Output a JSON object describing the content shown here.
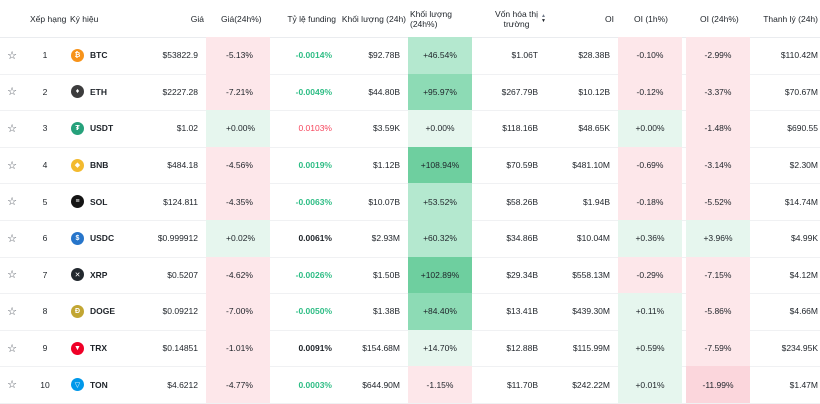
{
  "headers": {
    "rank": "Xếp hạng",
    "symbol": "Ký hiệu",
    "price": "Giá",
    "price_change": "Giá(24h%)",
    "funding": "Tỷ lệ funding",
    "volume": "Khối lượng (24h)",
    "volume_change": "Khối lượng (24h%)",
    "mcap_line1": "Vốn hóa thị",
    "mcap_line2": "trường",
    "oi": "OI",
    "oi_1h": "OI (1h%)",
    "oi_24h": "OI (24h%)",
    "liq": "Thanh lý (24h)"
  },
  "icons": {
    "favorite": "☆"
  },
  "rows": [
    {
      "rank": "1",
      "symbol": "BTC",
      "icon": "bitcoin-icon",
      "icon_glyph": "₿",
      "icon_color": "#f7931a",
      "price": "$53822.9",
      "price_change": "-5.13%",
      "funding": "-0.0014%",
      "funding_style": "fund-green",
      "volume": "$92.78B",
      "volume_change": "+46.54%",
      "vc_bg": "bg-g2",
      "pc_bg": "bg-r1",
      "mcap": "$1.06T",
      "oi": "$28.38B",
      "oi_1h": "-0.10%",
      "oi1_bg": "bg-r1",
      "oi_24h": "-2.99%",
      "oi24_bg": "bg-r1",
      "liq": "$110.42M"
    },
    {
      "rank": "2",
      "symbol": "ETH",
      "icon": "ethereum-icon",
      "icon_glyph": "♦",
      "icon_color": "#3c3c3d",
      "price": "$2227.28",
      "price_change": "-7.21%",
      "funding": "-0.0049%",
      "funding_style": "fund-green",
      "volume": "$44.80B",
      "volume_change": "+95.97%",
      "vc_bg": "bg-g3",
      "pc_bg": "bg-r1",
      "mcap": "$267.79B",
      "oi": "$10.12B",
      "oi_1h": "-0.12%",
      "oi1_bg": "bg-r1",
      "oi_24h": "-3.37%",
      "oi24_bg": "bg-r1",
      "liq": "$70.67M"
    },
    {
      "rank": "3",
      "symbol": "USDT",
      "icon": "tether-icon",
      "icon_glyph": "₮",
      "icon_color": "#26a17b",
      "price": "$1.02",
      "price_change": "+0.00%",
      "funding": "0.0103%",
      "funding_style": "fund-red",
      "volume": "$3.59K",
      "volume_change": "+0.00%",
      "vc_bg": "bg-g1",
      "pc_bg": "bg-g1",
      "mcap": "$118.16B",
      "oi": "$48.65K",
      "oi_1h": "+0.00%",
      "oi1_bg": "bg-g1",
      "oi_24h": "-1.48%",
      "oi24_bg": "bg-r1",
      "liq": "$690.55"
    },
    {
      "rank": "4",
      "symbol": "BNB",
      "icon": "bnb-icon",
      "icon_glyph": "◆",
      "icon_color": "#f3ba2f",
      "price": "$484.18",
      "price_change": "-4.56%",
      "funding": "0.0019%",
      "funding_style": "fund-green",
      "volume": "$1.12B",
      "volume_change": "+108.94%",
      "vc_bg": "bg-g4",
      "pc_bg": "bg-r1",
      "mcap": "$70.59B",
      "oi": "$481.10M",
      "oi_1h": "-0.69%",
      "oi1_bg": "bg-r1",
      "oi_24h": "-3.14%",
      "oi24_bg": "bg-r1",
      "liq": "$2.30M"
    },
    {
      "rank": "5",
      "symbol": "SOL",
      "icon": "solana-icon",
      "icon_glyph": "≡",
      "icon_color": "#141414",
      "price": "$124.811",
      "price_change": "-4.35%",
      "funding": "-0.0063%",
      "funding_style": "fund-green",
      "volume": "$10.07B",
      "volume_change": "+53.52%",
      "vc_bg": "bg-g2",
      "pc_bg": "bg-r1",
      "mcap": "$58.26B",
      "oi": "$1.94B",
      "oi_1h": "-0.18%",
      "oi1_bg": "bg-r1",
      "oi_24h": "-5.52%",
      "oi24_bg": "bg-r1",
      "liq": "$14.74M"
    },
    {
      "rank": "6",
      "symbol": "USDC",
      "icon": "usdc-icon",
      "icon_glyph": "$",
      "icon_color": "#2775ca",
      "price": "$0.999912",
      "price_change": "+0.02%",
      "funding": "0.0061%",
      "funding_style": "fund-dark",
      "volume": "$2.93M",
      "volume_change": "+60.32%",
      "vc_bg": "bg-g2",
      "pc_bg": "bg-g1",
      "mcap": "$34.86B",
      "oi": "$10.04M",
      "oi_1h": "+0.36%",
      "oi1_bg": "bg-g1",
      "oi_24h": "+3.96%",
      "oi24_bg": "bg-g1",
      "liq": "$4.99K"
    },
    {
      "rank": "7",
      "symbol": "XRP",
      "icon": "xrp-icon",
      "icon_glyph": "✕",
      "icon_color": "#23292f",
      "price": "$0.5207",
      "price_change": "-4.62%",
      "funding": "-0.0026%",
      "funding_style": "fund-green",
      "volume": "$1.50B",
      "volume_change": "+102.89%",
      "vc_bg": "bg-g4",
      "pc_bg": "bg-r1",
      "mcap": "$29.34B",
      "oi": "$558.13M",
      "oi_1h": "-0.29%",
      "oi1_bg": "bg-r1",
      "oi_24h": "-7.15%",
      "oi24_bg": "bg-r1",
      "liq": "$4.12M"
    },
    {
      "rank": "8",
      "symbol": "DOGE",
      "icon": "dogecoin-icon",
      "icon_glyph": "Ð",
      "icon_color": "#c2a633",
      "price": "$0.09212",
      "price_change": "-7.00%",
      "funding": "-0.0050%",
      "funding_style": "fund-green",
      "volume": "$1.38B",
      "volume_change": "+84.40%",
      "vc_bg": "bg-g3",
      "pc_bg": "bg-r1",
      "mcap": "$13.41B",
      "oi": "$439.30M",
      "oi_1h": "+0.11%",
      "oi1_bg": "bg-g1",
      "oi_24h": "-5.86%",
      "oi24_bg": "bg-r1",
      "liq": "$4.66M"
    },
    {
      "rank": "9",
      "symbol": "TRX",
      "icon": "tron-icon",
      "icon_glyph": "▼",
      "icon_color": "#ef0027",
      "price": "$0.14851",
      "price_change": "-1.01%",
      "funding": "0.0091%",
      "funding_style": "fund-dark",
      "volume": "$154.68M",
      "volume_change": "+14.70%",
      "vc_bg": "bg-g1",
      "pc_bg": "bg-r1",
      "mcap": "$12.88B",
      "oi": "$115.99M",
      "oi_1h": "+0.59%",
      "oi1_bg": "bg-g1",
      "oi_24h": "-7.59%",
      "oi24_bg": "bg-r1",
      "liq": "$234.95K"
    },
    {
      "rank": "10",
      "symbol": "TON",
      "icon": "toncoin-icon",
      "icon_glyph": "▽",
      "icon_color": "#0098ea",
      "price": "$4.6212",
      "price_change": "-4.77%",
      "funding": "0.0003%",
      "funding_style": "fund-green",
      "volume": "$644.90M",
      "volume_change": "-1.15%",
      "vc_bg": "bg-r1",
      "pc_bg": "bg-r1",
      "mcap": "$11.70B",
      "oi": "$242.22M",
      "oi_1h": "+0.01%",
      "oi1_bg": "bg-g1",
      "oi_24h": "-11.99%",
      "oi24_bg": "bg-r2",
      "liq": "$1.47M"
    }
  ]
}
